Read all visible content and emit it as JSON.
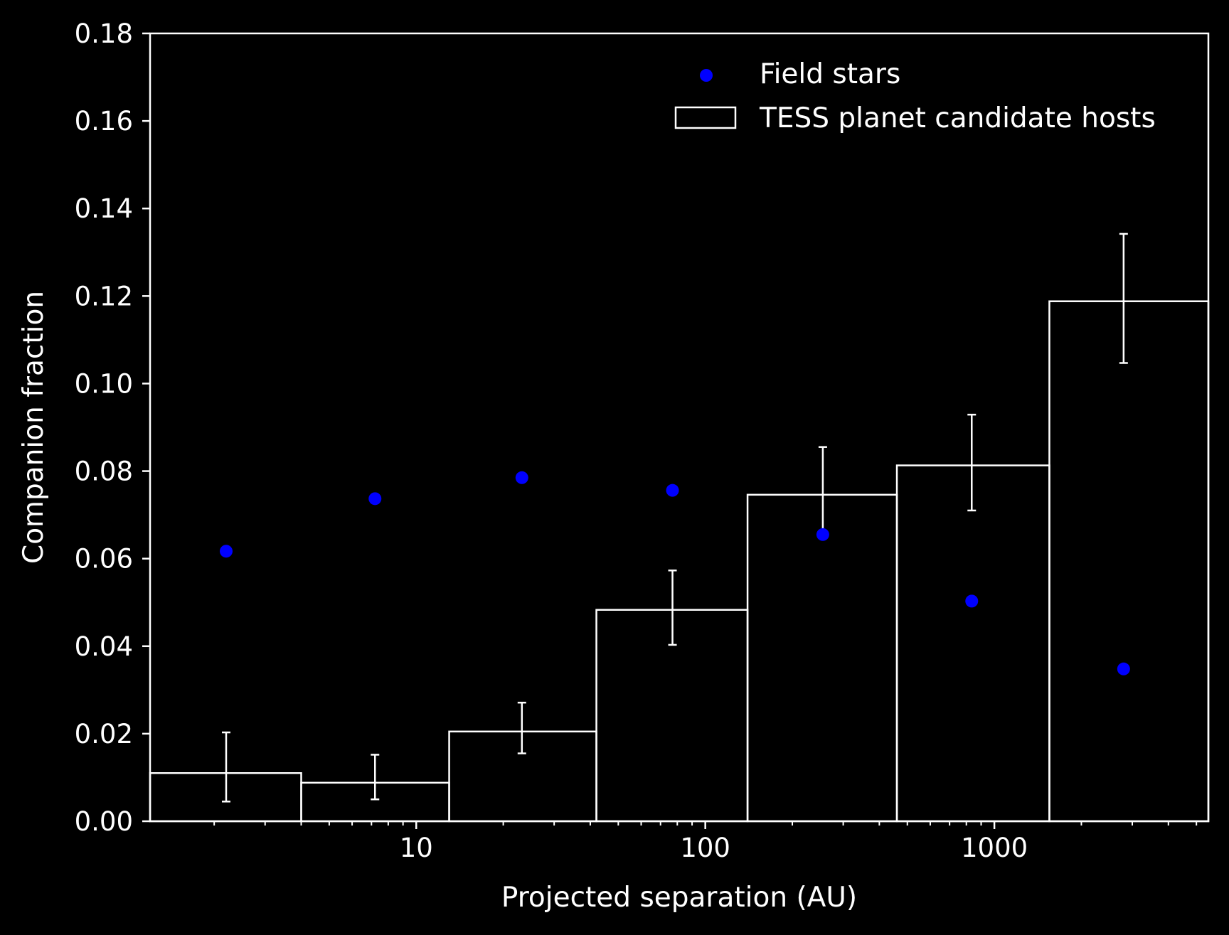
{
  "chart_data": {
    "type": "bar",
    "xlabel": "Projected separation (AU)",
    "ylabel": "Companion fraction",
    "xscale": "log",
    "xlim": [
      1.2,
      5500
    ],
    "ylim": [
      0,
      0.18
    ],
    "yticks": [
      "0.00",
      "0.02",
      "0.04",
      "0.06",
      "0.08",
      "0.10",
      "0.12",
      "0.14",
      "0.16",
      "0.18"
    ],
    "xticks": [
      {
        "value": 10,
        "label": "10"
      },
      {
        "value": 100,
        "label": "100"
      },
      {
        "value": 1000,
        "label": "1000"
      }
    ],
    "grid": false,
    "legend_position": "top-right",
    "series": [
      {
        "name": "TESS planet candidate hosts",
        "style": "histogram",
        "color": "#ffffff",
        "bin_edges": [
          1.2,
          4,
          13,
          42,
          140,
          460,
          1550,
          5500
        ],
        "values": [
          0.011,
          0.0088,
          0.0205,
          0.0483,
          0.0746,
          0.0813,
          0.1188
        ],
        "x": [
          2.2,
          7.2,
          23.2,
          77,
          255,
          835,
          2800
        ],
        "err_low": [
          0.0065,
          0.0038,
          0.005,
          0.008,
          0.0093,
          0.0103,
          0.0141
        ],
        "err_high": [
          0.0093,
          0.0064,
          0.0066,
          0.009,
          0.0109,
          0.0116,
          0.0154
        ]
      },
      {
        "name": "Field stars",
        "style": "scatter",
        "color": "#0000ff",
        "x": [
          2.2,
          7.2,
          23.2,
          77,
          255,
          835,
          2800
        ],
        "values": [
          0.0617,
          0.0737,
          0.0785,
          0.0756,
          0.0655,
          0.0503,
          0.0348
        ]
      }
    ]
  }
}
